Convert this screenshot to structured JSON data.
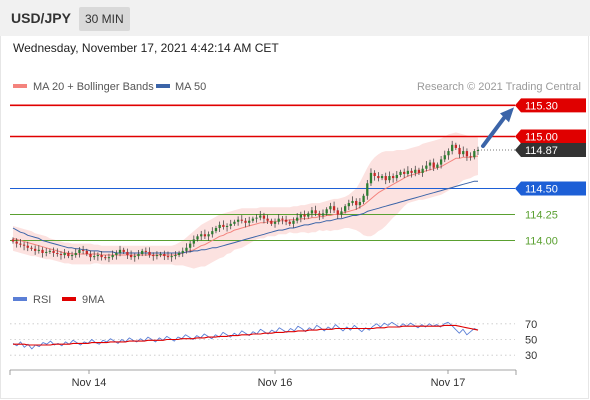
{
  "header": {
    "pair": "USD/JPY",
    "timeframe": "30 MIN"
  },
  "date_text": "Wednesday, November 17, 2021 4:42:14 AM CET",
  "colors": {
    "ma20": "#f4837d",
    "ma50": "#3b64a8",
    "resistance": "#e00000",
    "support_blue": "#1d5fd6",
    "support_green": "#5aa030",
    "bull": "#2e7d32",
    "bear": "#c62828",
    "arrow": "#3b64a8",
    "rsi": "#5b7fd6",
    "ma9": "#e00000"
  },
  "chart_data": [
    {
      "type": "candlestick",
      "title": "",
      "credit": "Research © 2021 Trading Central",
      "legend": [
        {
          "name": "MA 20 + Bollinger Bands",
          "color": "#f4837d"
        },
        {
          "name": "MA 50",
          "color": "#3b64a8"
        }
      ],
      "x_ticks": [
        "Nov 14",
        "Nov 16",
        "Nov 17"
      ],
      "y_range": [
        113.62,
        115.38
      ],
      "levels": [
        {
          "label": "115.30",
          "value": 115.3,
          "kind": "resistance"
        },
        {
          "label": "115.00",
          "value": 115.0,
          "kind": "resistance"
        },
        {
          "label": "114.87",
          "value": 114.87,
          "kind": "last"
        },
        {
          "label": "114.50",
          "value": 114.5,
          "kind": "support_blue"
        },
        {
          "label": "114.25",
          "value": 114.25,
          "kind": "support_green"
        },
        {
          "label": "114.00",
          "value": 114.0,
          "kind": "support_green"
        }
      ],
      "close_series": [
        113.99,
        113.97,
        113.96,
        113.95,
        113.93,
        113.92,
        113.9,
        113.91,
        113.88,
        113.89,
        113.9,
        113.88,
        113.87,
        113.86,
        113.88,
        113.85,
        113.86,
        113.88,
        113.91,
        113.9,
        113.87,
        113.84,
        113.85,
        113.86,
        113.84,
        113.83,
        113.84,
        113.86,
        113.88,
        113.91,
        113.89,
        113.86,
        113.84,
        113.85,
        113.87,
        113.9,
        113.89,
        113.86,
        113.85,
        113.86,
        113.87,
        113.85,
        113.84,
        113.85,
        113.86,
        113.88,
        113.9,
        113.93,
        113.97,
        114.01,
        114.04,
        114.06,
        114.04,
        114.06,
        114.09,
        114.12,
        114.15,
        114.13,
        114.14,
        114.16,
        114.18,
        114.2,
        114.19,
        114.17,
        114.19,
        114.21,
        114.22,
        114.24,
        114.21,
        114.19,
        114.16,
        114.18,
        114.21,
        114.2,
        114.18,
        114.16,
        114.19,
        114.22,
        114.25,
        114.23,
        114.26,
        114.29,
        114.26,
        114.24,
        114.26,
        114.3,
        114.33,
        114.29,
        114.25,
        114.28,
        114.33,
        114.36,
        114.38,
        114.34,
        114.37,
        114.43,
        114.55,
        114.65,
        114.62,
        114.6,
        114.62,
        114.58,
        114.62,
        114.6,
        114.63,
        114.66,
        114.64,
        114.67,
        114.65,
        114.68,
        114.65,
        114.69,
        114.72,
        114.75,
        114.7,
        114.73,
        114.78,
        114.82,
        114.86,
        114.92,
        114.89,
        114.83,
        114.86,
        114.81,
        114.8,
        114.86,
        114.87
      ],
      "ma20": [
        114.02,
        114.01,
        114.0,
        113.99,
        113.98,
        113.97,
        113.96,
        113.95,
        113.94,
        113.93,
        113.92,
        113.91,
        113.9,
        113.89,
        113.88,
        113.88,
        113.87,
        113.87,
        113.87,
        113.87,
        113.87,
        113.87,
        113.87,
        113.87,
        113.86,
        113.86,
        113.86,
        113.86,
        113.86,
        113.86,
        113.86,
        113.86,
        113.86,
        113.86,
        113.86,
        113.86,
        113.86,
        113.86,
        113.86,
        113.86,
        113.86,
        113.86,
        113.86,
        113.86,
        113.86,
        113.87,
        113.88,
        113.89,
        113.9,
        113.91,
        113.93,
        113.95,
        113.96,
        113.98,
        114.0,
        114.02,
        114.04,
        114.05,
        114.07,
        114.08,
        114.1,
        114.11,
        114.12,
        114.13,
        114.14,
        114.15,
        114.16,
        114.17,
        114.17,
        114.18,
        114.18,
        114.18,
        114.19,
        114.19,
        114.19,
        114.2,
        114.2,
        114.2,
        114.21,
        114.21,
        114.21,
        114.22,
        114.22,
        114.23,
        114.23,
        114.24,
        114.24,
        114.25,
        114.25,
        114.26,
        114.27,
        114.28,
        114.29,
        114.3,
        114.32,
        114.34,
        114.37,
        114.4,
        114.43,
        114.46,
        114.48,
        114.5,
        114.52,
        114.54,
        114.56,
        114.58,
        114.6,
        114.62,
        114.63,
        114.64,
        114.65,
        114.66,
        114.67,
        114.68,
        114.69,
        114.7,
        114.71,
        114.73,
        114.75,
        114.77,
        114.79,
        114.79,
        114.8,
        114.8,
        114.8,
        114.81,
        114.81
      ],
      "ma50": [
        114.12,
        114.1,
        114.08,
        114.07,
        114.05,
        114.04,
        114.03,
        114.02,
        114.0,
        113.99,
        113.98,
        113.97,
        113.96,
        113.95,
        113.94,
        113.93,
        113.93,
        113.92,
        113.92,
        113.91,
        113.91,
        113.9,
        113.9,
        113.9,
        113.89,
        113.89,
        113.89,
        113.89,
        113.88,
        113.88,
        113.88,
        113.88,
        113.88,
        113.88,
        113.88,
        113.88,
        113.88,
        113.88,
        113.88,
        113.88,
        113.88,
        113.88,
        113.88,
        113.88,
        113.88,
        113.88,
        113.88,
        113.89,
        113.89,
        113.9,
        113.9,
        113.91,
        113.91,
        113.92,
        113.93,
        113.93,
        113.94,
        113.95,
        113.96,
        113.97,
        113.98,
        113.99,
        114.0,
        114.01,
        114.02,
        114.03,
        114.04,
        114.05,
        114.06,
        114.07,
        114.08,
        114.09,
        114.1,
        114.1,
        114.11,
        114.12,
        114.12,
        114.13,
        114.14,
        114.15,
        114.15,
        114.16,
        114.17,
        114.17,
        114.18,
        114.19,
        114.19,
        114.2,
        114.21,
        114.21,
        114.22,
        114.23,
        114.24,
        114.24,
        114.25,
        114.26,
        114.28,
        114.29,
        114.3,
        114.31,
        114.32,
        114.33,
        114.34,
        114.35,
        114.36,
        114.37,
        114.38,
        114.39,
        114.4,
        114.41,
        114.42,
        114.43,
        114.44,
        114.45,
        114.46,
        114.47,
        114.48,
        114.49,
        114.5,
        114.51,
        114.52,
        114.53,
        114.54,
        114.55,
        114.56,
        114.57,
        114.57
      ],
      "bb_upper": [
        114.14,
        114.13,
        114.12,
        114.11,
        114.1,
        114.09,
        114.07,
        114.06,
        114.05,
        114.04,
        114.02,
        114.01,
        114.0,
        113.99,
        113.98,
        113.98,
        113.97,
        113.97,
        113.97,
        113.97,
        113.97,
        113.97,
        113.96,
        113.96,
        113.95,
        113.95,
        113.95,
        113.95,
        113.95,
        113.95,
        113.95,
        113.95,
        113.95,
        113.95,
        113.95,
        113.95,
        113.95,
        113.95,
        113.95,
        113.95,
        113.95,
        113.95,
        113.95,
        113.95,
        113.96,
        113.98,
        114.0,
        114.03,
        114.06,
        114.09,
        114.12,
        114.15,
        114.17,
        114.19,
        114.21,
        114.23,
        114.25,
        114.26,
        114.27,
        114.28,
        114.29,
        114.3,
        114.31,
        114.31,
        114.31,
        114.31,
        114.31,
        114.32,
        114.32,
        114.32,
        114.32,
        114.32,
        114.32,
        114.32,
        114.32,
        114.32,
        114.33,
        114.33,
        114.34,
        114.34,
        114.35,
        114.36,
        114.36,
        114.36,
        114.37,
        114.38,
        114.39,
        114.4,
        114.4,
        114.41,
        114.42,
        114.44,
        114.47,
        114.5,
        114.56,
        114.63,
        114.7,
        114.76,
        114.8,
        114.83,
        114.85,
        114.86,
        114.86,
        114.86,
        114.87,
        114.87,
        114.87,
        114.88,
        114.89,
        114.9,
        114.91,
        114.93,
        114.94,
        114.95,
        114.96,
        114.97,
        114.98,
        115.0,
        115.02,
        115.03,
        115.04,
        115.03,
        115.02,
        115.01,
        115.0,
        115.0,
        114.99
      ],
      "bb_lower": [
        113.9,
        113.89,
        113.88,
        113.87,
        113.86,
        113.85,
        113.85,
        113.84,
        113.83,
        113.82,
        113.82,
        113.81,
        113.8,
        113.79,
        113.78,
        113.78,
        113.77,
        113.77,
        113.77,
        113.77,
        113.77,
        113.77,
        113.78,
        113.78,
        113.77,
        113.77,
        113.77,
        113.77,
        113.77,
        113.77,
        113.77,
        113.77,
        113.77,
        113.77,
        113.77,
        113.77,
        113.77,
        113.77,
        113.77,
        113.77,
        113.77,
        113.77,
        113.77,
        113.77,
        113.76,
        113.76,
        113.76,
        113.75,
        113.74,
        113.73,
        113.74,
        113.75,
        113.75,
        113.77,
        113.79,
        113.81,
        113.83,
        113.84,
        113.87,
        113.88,
        113.91,
        113.92,
        113.93,
        113.95,
        113.97,
        113.99,
        114.01,
        114.02,
        114.02,
        114.04,
        114.04,
        114.04,
        114.06,
        114.06,
        114.06,
        114.08,
        114.07,
        114.07,
        114.08,
        114.08,
        114.07,
        114.08,
        114.08,
        114.1,
        114.09,
        114.1,
        114.09,
        114.1,
        114.1,
        114.11,
        114.12,
        114.12,
        114.11,
        114.1,
        114.08,
        114.05,
        114.04,
        114.04,
        114.06,
        114.09,
        114.11,
        114.14,
        114.18,
        114.22,
        114.25,
        114.29,
        114.33,
        114.36,
        114.37,
        114.38,
        114.39,
        114.39,
        114.4,
        114.41,
        114.42,
        114.43,
        114.44,
        114.46,
        114.48,
        114.5,
        114.52,
        114.55,
        114.58,
        114.59,
        114.6,
        114.62,
        114.63
      ]
    },
    {
      "type": "line",
      "title": "",
      "legend": [
        {
          "name": "RSI",
          "color": "#5b7fd6"
        },
        {
          "name": "9MA",
          "color": "#e00000"
        }
      ],
      "y_ticks": [
        "70",
        "50",
        "30"
      ],
      "y_range": [
        20,
        80
      ],
      "series": [
        {
          "name": "RSI",
          "values": [
            45,
            42,
            47,
            40,
            44,
            38,
            43,
            41,
            46,
            44,
            48,
            43,
            45,
            42,
            47,
            44,
            49,
            46,
            43,
            47,
            45,
            50,
            46,
            44,
            49,
            47,
            51,
            48,
            45,
            50,
            47,
            52,
            49,
            47,
            51,
            48,
            53,
            50,
            47,
            52,
            49,
            54,
            51,
            48,
            53,
            51,
            56,
            53,
            50,
            55,
            52,
            57,
            54,
            51,
            56,
            53,
            59,
            56,
            53,
            58,
            55,
            61,
            58,
            55,
            60,
            57,
            63,
            60,
            57,
            62,
            59,
            65,
            62,
            59,
            64,
            61,
            67,
            64,
            60,
            65,
            62,
            68,
            65,
            61,
            66,
            63,
            69,
            65,
            61,
            66,
            62,
            68,
            64,
            60,
            65,
            62,
            67,
            70,
            66,
            71,
            68,
            72,
            69,
            66,
            70,
            67,
            71,
            68,
            65,
            69,
            66,
            70,
            67,
            69,
            66,
            70,
            72,
            68,
            63,
            58,
            63,
            56,
            60,
            64,
            62
          ]
        },
        {
          "name": "9MA",
          "values": [
            44,
            44,
            44,
            44,
            43,
            43,
            43,
            43,
            43,
            43,
            43,
            44,
            44,
            44,
            44,
            44,
            45,
            45,
            45,
            45,
            45,
            46,
            46,
            46,
            46,
            46,
            47,
            47,
            47,
            47,
            47,
            48,
            48,
            48,
            48,
            48,
            49,
            49,
            49,
            49,
            49,
            50,
            50,
            50,
            50,
            51,
            51,
            51,
            51,
            52,
            52,
            52,
            53,
            53,
            53,
            54,
            54,
            54,
            55,
            55,
            55,
            56,
            56,
            56,
            57,
            57,
            57,
            58,
            58,
            58,
            59,
            59,
            59,
            60,
            60,
            60,
            61,
            61,
            61,
            62,
            62,
            62,
            63,
            63,
            63,
            63,
            64,
            64,
            64,
            64,
            64,
            64,
            64,
            64,
            64,
            64,
            64,
            65,
            65,
            65,
            66,
            66,
            66,
            66,
            67,
            67,
            67,
            67,
            67,
            67,
            67,
            67,
            67,
            67,
            67,
            68,
            68,
            68,
            68,
            67,
            66,
            65,
            64,
            63,
            62
          ]
        }
      ]
    }
  ]
}
